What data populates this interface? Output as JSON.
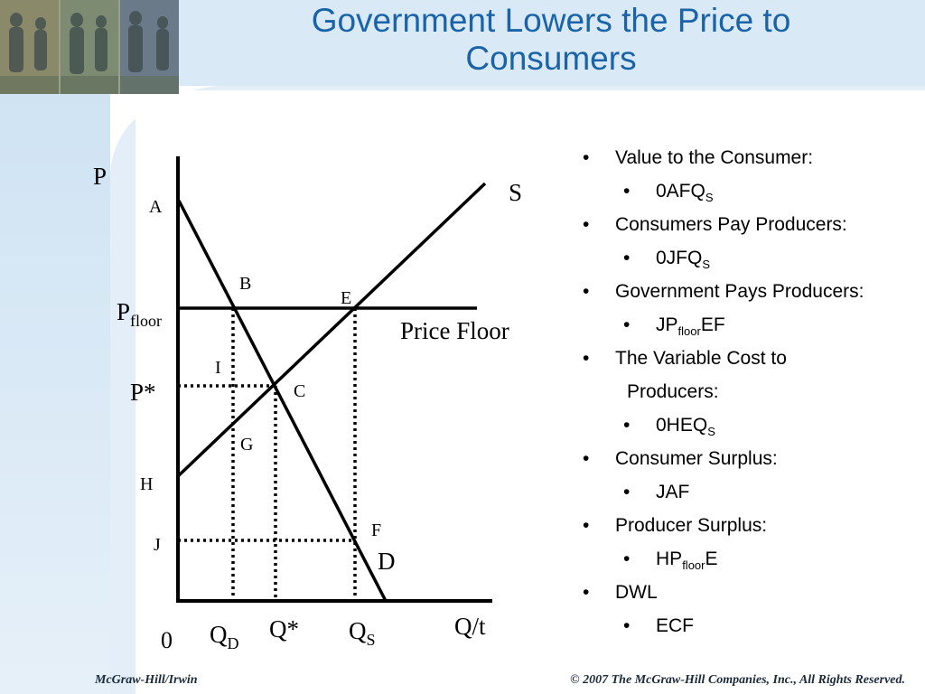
{
  "slide": {
    "title_line1": "Government Lowers the Price to",
    "title_line2": "Consumers",
    "colors": {
      "title": "#1a63a8",
      "background_band": "#dbeaf6",
      "header_band": "#d6e8f5"
    }
  },
  "diagram": {
    "labels": {
      "y_axis": "P",
      "origin": "0",
      "x_axis": "Q/t",
      "supply": "S",
      "demand": "D",
      "price_floor_line": "Price Floor",
      "p_floor_main": "P",
      "p_floor_sub": "floor",
      "p_star": "P*",
      "q_d_main": "Q",
      "q_d_sub": "D",
      "q_star": "Q*",
      "q_s_main": "Q",
      "q_s_sub": "S"
    },
    "points": [
      "A",
      "B",
      "E",
      "I",
      "C",
      "G",
      "H",
      "F",
      "J"
    ]
  },
  "bullets": {
    "item1": "Value to the Consumer:",
    "item1_sub_main": "0AFQ",
    "item1_sub_sub": "S",
    "item2": "Consumers Pay Producers:",
    "item2_sub_main": "0JFQ",
    "item2_sub_sub": "S",
    "item3": "Government Pays Producers:",
    "item3_sub_pre": "JP",
    "item3_sub_sub": "floor",
    "item3_sub_post": "EF",
    "item4_line1": "The Variable Cost to",
    "item4_line2": "Producers:",
    "item4_sub_main": "0HEQ",
    "item4_sub_sub": "S",
    "item5": "Consumer Surplus:",
    "item5_sub": "JAF",
    "item6": "Producer Surplus:",
    "item6_sub_pre": "HP",
    "item6_sub_sub": "floor",
    "item6_sub_post": "E",
    "item7": "DWL",
    "item7_sub": "ECF"
  },
  "footer": {
    "left": "McGraw-Hill/Irwin",
    "right": "© 2007 The McGraw-Hill Companies, Inc., All Rights Reserved."
  }
}
